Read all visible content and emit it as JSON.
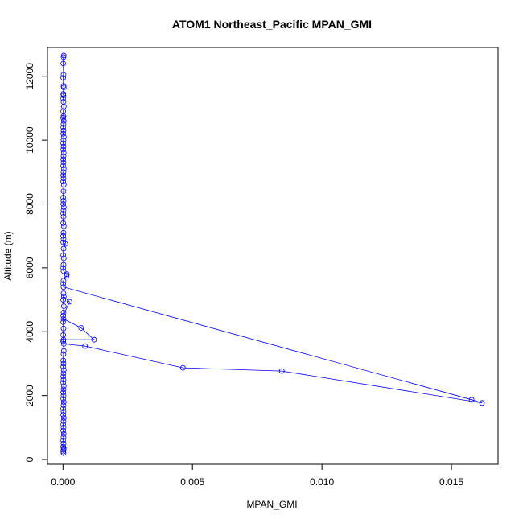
{
  "chart_data": {
    "type": "line",
    "title": "ATOM1 Northeast_Pacific MPAN_GMI",
    "xlabel": "MPAN_GMI",
    "ylabel": "Altitude (m)",
    "xlim": [
      -0.0006,
      0.0168
    ],
    "ylim": [
      -150,
      12900
    ],
    "x_ticks": [
      0.0,
      0.005,
      0.01,
      0.015
    ],
    "x_tick_labels": [
      "0.000",
      "0.005",
      "0.010",
      "0.015"
    ],
    "y_ticks": [
      0,
      2000,
      4000,
      6000,
      8000,
      10000,
      12000
    ],
    "y_tick_labels": [
      "0",
      "2000",
      "4000",
      "6000",
      "8000",
      "10000",
      "12000"
    ],
    "grid": false,
    "legend": "none",
    "series": [
      {
        "color": "#0000ff",
        "marker": "open-circle",
        "points": [
          [
            3e-05,
            12650
          ],
          [
            2e-05,
            12600
          ],
          [
            1e-05,
            12400
          ],
          [
            2e-05,
            12050
          ],
          [
            1e-05,
            11950
          ],
          [
            2e-05,
            11700
          ],
          [
            3e-05,
            11650
          ],
          [
            1e-05,
            11450
          ],
          [
            2e-05,
            11400
          ],
          [
            1e-05,
            11300
          ],
          [
            2e-05,
            11200
          ],
          [
            3e-05,
            11050
          ],
          [
            1e-05,
            10900
          ],
          [
            2e-05,
            10750
          ],
          [
            1e-05,
            10700
          ],
          [
            3e-05,
            10600
          ],
          [
            2e-05,
            10500
          ],
          [
            1e-05,
            10400
          ],
          [
            2e-05,
            10300
          ],
          [
            1e-05,
            10200
          ],
          [
            3e-05,
            10100
          ],
          [
            2e-05,
            10000
          ],
          [
            1e-05,
            9900
          ],
          [
            2e-05,
            9800
          ],
          [
            1e-05,
            9700
          ],
          [
            3e-05,
            9600
          ],
          [
            2e-05,
            9500
          ],
          [
            1e-05,
            9400
          ],
          [
            2e-05,
            9300
          ],
          [
            1e-05,
            9200
          ],
          [
            3e-05,
            9100
          ],
          [
            2e-05,
            9000
          ],
          [
            1e-05,
            8900
          ],
          [
            2e-05,
            8800
          ],
          [
            1e-05,
            8700
          ],
          [
            3e-05,
            8600
          ],
          [
            2e-05,
            8400
          ],
          [
            1e-05,
            8200
          ],
          [
            2e-05,
            8100
          ],
          [
            1e-05,
            8000
          ],
          [
            3e-05,
            7900
          ],
          [
            2e-05,
            7800
          ],
          [
            1e-05,
            7700
          ],
          [
            2e-05,
            7600
          ],
          [
            1e-05,
            7400
          ],
          [
            3e-05,
            7300
          ],
          [
            2e-05,
            7100
          ],
          [
            1e-05,
            7000
          ],
          [
            2e-05,
            6900
          ],
          [
            1e-05,
            6800
          ],
          [
            9e-05,
            6750
          ],
          [
            2e-05,
            6600
          ],
          [
            1e-05,
            6400
          ],
          [
            3e-05,
            6300
          ],
          [
            2e-05,
            6100
          ],
          [
            1e-05,
            6000
          ],
          [
            2e-05,
            5900
          ],
          [
            0.00015,
            5800
          ],
          [
            0.00014,
            5750
          ],
          [
            2e-05,
            5600
          ],
          [
            1e-05,
            5500
          ],
          [
            2e-05,
            5400
          ],
          [
            0.01578,
            1870
          ],
          [
            0.01618,
            1770
          ],
          [
            0.00845,
            2770
          ],
          [
            0.00463,
            2870
          ],
          [
            0.00085,
            3550
          ],
          [
            3e-05,
            3620
          ],
          [
            1e-05,
            3700
          ],
          [
            2e-05,
            3750
          ],
          [
            0.0012,
            3750
          ],
          [
            0.0007,
            4120
          ],
          [
            2e-05,
            4400
          ],
          [
            1e-05,
            4500
          ],
          [
            0.00025,
            4940
          ],
          [
            3e-05,
            5100
          ],
          [
            2e-05,
            5200
          ],
          [
            1e-05,
            5000
          ],
          [
            3e-05,
            4800
          ],
          [
            2e-05,
            4600
          ],
          [
            1e-05,
            4300
          ],
          [
            2e-05,
            4100
          ],
          [
            1e-05,
            3900
          ],
          [
            3e-05,
            3400
          ],
          [
            2e-05,
            3300
          ],
          [
            1e-05,
            3100
          ],
          [
            2e-05,
            3000
          ],
          [
            1e-05,
            2900
          ],
          [
            3e-05,
            2800
          ],
          [
            2e-05,
            2700
          ],
          [
            1e-05,
            2600
          ],
          [
            2e-05,
            2500
          ],
          [
            1e-05,
            2400
          ],
          [
            3e-05,
            2300
          ],
          [
            2e-05,
            2200
          ],
          [
            1e-05,
            2100
          ],
          [
            2e-05,
            2000
          ],
          [
            1e-05,
            1900
          ],
          [
            3e-05,
            1800
          ],
          [
            2e-05,
            1700
          ],
          [
            1e-05,
            1600
          ],
          [
            2e-05,
            1500
          ],
          [
            1e-05,
            1400
          ],
          [
            3e-05,
            1300
          ],
          [
            2e-05,
            1200
          ],
          [
            1e-05,
            1100
          ],
          [
            2e-05,
            1000
          ],
          [
            1e-05,
            900
          ],
          [
            3e-05,
            800
          ],
          [
            2e-05,
            700
          ],
          [
            1e-05,
            600
          ],
          [
            2e-05,
            500
          ],
          [
            1e-05,
            400
          ],
          [
            3e-05,
            350
          ],
          [
            2e-05,
            300
          ],
          [
            1e-05,
            250
          ],
          [
            2e-05,
            200
          ]
        ]
      }
    ]
  }
}
